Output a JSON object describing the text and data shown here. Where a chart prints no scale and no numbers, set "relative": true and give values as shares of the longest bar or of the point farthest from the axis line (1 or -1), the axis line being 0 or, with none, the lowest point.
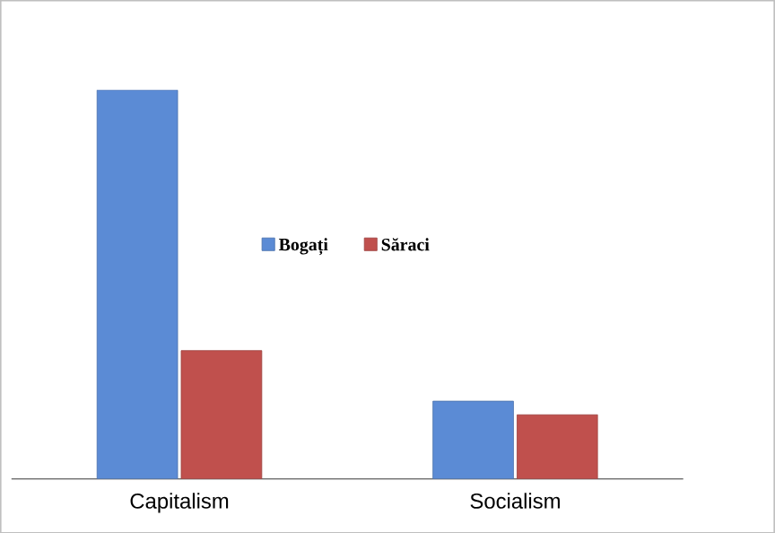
{
  "chart_data": {
    "type": "bar",
    "relative": true,
    "categories": [
      "Capitalism",
      "Socialism"
    ],
    "series": [
      {
        "name": "Bogați",
        "color": "#5b8bd5",
        "values": [
          1,
          0.2
        ]
      },
      {
        "name": "Săraci",
        "color": "#c0504d",
        "values": [
          0.33,
          0.165
        ]
      }
    ],
    "legend": "center"
  }
}
